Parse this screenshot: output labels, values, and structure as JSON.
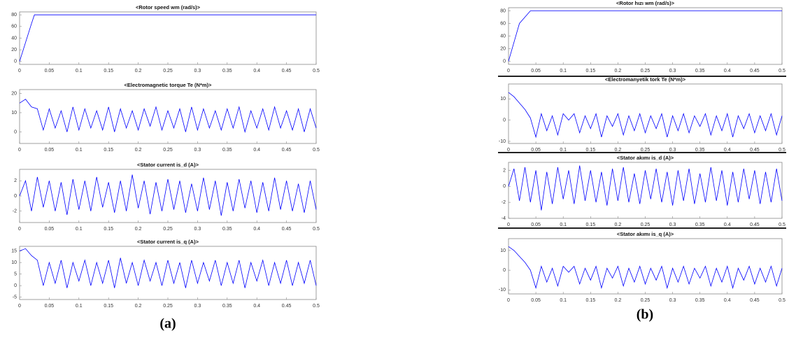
{
  "chart_data": [
    {
      "type": "line",
      "title": "<Rotor speed wm (rad/s)>",
      "x": [
        0,
        0.02,
        0.025,
        0.5
      ],
      "series": [
        {
          "color": "#0000ff",
          "values": [
            0,
            65,
            80,
            80
          ]
        }
      ],
      "xlim": [
        0,
        0.5
      ],
      "ylim": [
        -5,
        85
      ],
      "xticks": [
        0,
        0.05,
        0.1,
        0.15,
        0.2,
        0.25,
        0.3,
        0.35,
        0.4,
        0.45,
        0.5
      ],
      "yticks": [
        0,
        20,
        40,
        60,
        80
      ]
    },
    {
      "type": "line",
      "title": "<Electromagnetic torque Te (N*m)>",
      "x": [
        0,
        0.01,
        0.02,
        0.03,
        0.04,
        0.05,
        0.06,
        0.07,
        0.08,
        0.09,
        0.1,
        0.11,
        0.12,
        0.13,
        0.14,
        0.15,
        0.16,
        0.17,
        0.18,
        0.19,
        0.2,
        0.21,
        0.22,
        0.23,
        0.24,
        0.25,
        0.26,
        0.27,
        0.28,
        0.29,
        0.3,
        0.31,
        0.32,
        0.33,
        0.34,
        0.35,
        0.36,
        0.37,
        0.38,
        0.39,
        0.4,
        0.41,
        0.42,
        0.43,
        0.44,
        0.45,
        0.46,
        0.47,
        0.48,
        0.49,
        0.5
      ],
      "series": [
        {
          "color": "#0000ff",
          "values": [
            15,
            17,
            13,
            12,
            1,
            12,
            2,
            11,
            0,
            13,
            1,
            12,
            2,
            11,
            1,
            13,
            0,
            12,
            2,
            11,
            1,
            12,
            3,
            13,
            1,
            11,
            2,
            12,
            0,
            13,
            1,
            12,
            2,
            11,
            1,
            12,
            2,
            13,
            0,
            11,
            2,
            12,
            1,
            13,
            2,
            11,
            1,
            12,
            0,
            12,
            2
          ]
        }
      ],
      "xlim": [
        0,
        0.5
      ],
      "ylim": [
        -6,
        22
      ],
      "xticks": [
        0,
        0.05,
        0.1,
        0.15,
        0.2,
        0.25,
        0.3,
        0.35,
        0.4,
        0.45,
        0.5
      ],
      "yticks": [
        0,
        10,
        20
      ]
    },
    {
      "type": "line",
      "title": "<Stator current is_d (A)>",
      "x": [
        0,
        0.01,
        0.02,
        0.03,
        0.04,
        0.05,
        0.06,
        0.07,
        0.08,
        0.09,
        0.1,
        0.11,
        0.12,
        0.13,
        0.14,
        0.15,
        0.16,
        0.17,
        0.18,
        0.19,
        0.2,
        0.21,
        0.22,
        0.23,
        0.24,
        0.25,
        0.26,
        0.27,
        0.28,
        0.29,
        0.3,
        0.31,
        0.32,
        0.33,
        0.34,
        0.35,
        0.36,
        0.37,
        0.38,
        0.39,
        0.4,
        0.41,
        0.42,
        0.43,
        0.44,
        0.45,
        0.46,
        0.47,
        0.48,
        0.49,
        0.5
      ],
      "series": [
        {
          "color": "#0000ff",
          "values": [
            0,
            2,
            -2,
            2.5,
            -1.5,
            2,
            -2,
            1.8,
            -2.5,
            2.2,
            -1.8,
            2,
            -2,
            2.5,
            -1.5,
            1.8,
            -2.2,
            2,
            -2,
            2.8,
            -1.6,
            2,
            -2.4,
            1.8,
            -2,
            2.2,
            -1.8,
            2,
            -2.2,
            1.6,
            -2,
            2.4,
            -1.8,
            2,
            -2.6,
            1.8,
            -2,
            2.2,
            -1.6,
            2,
            -2.2,
            1.8,
            -2,
            2.4,
            -1.8,
            2,
            -2,
            1.6,
            -2.2,
            2,
            -1.8
          ]
        }
      ],
      "xlim": [
        0,
        0.5
      ],
      "ylim": [
        -3.5,
        3.5
      ],
      "xticks": [
        0,
        0.05,
        0.1,
        0.15,
        0.2,
        0.25,
        0.3,
        0.35,
        0.4,
        0.45,
        0.5
      ],
      "yticks": [
        -2,
        0,
        2
      ]
    },
    {
      "type": "line",
      "title": "<Stator current is_q (A)>",
      "x": [
        0,
        0.01,
        0.02,
        0.03,
        0.04,
        0.05,
        0.06,
        0.07,
        0.08,
        0.09,
        0.1,
        0.11,
        0.12,
        0.13,
        0.14,
        0.15,
        0.16,
        0.17,
        0.18,
        0.19,
        0.2,
        0.21,
        0.22,
        0.23,
        0.24,
        0.25,
        0.26,
        0.27,
        0.28,
        0.29,
        0.3,
        0.31,
        0.32,
        0.33,
        0.34,
        0.35,
        0.36,
        0.37,
        0.38,
        0.39,
        0.4,
        0.41,
        0.42,
        0.43,
        0.44,
        0.45,
        0.46,
        0.47,
        0.48,
        0.49,
        0.5
      ],
      "series": [
        {
          "color": "#0000ff",
          "values": [
            15,
            16,
            13,
            11,
            0,
            10,
            1,
            11,
            -1,
            10,
            2,
            11,
            0,
            10,
            1,
            11,
            -1,
            12,
            1,
            10,
            0,
            11,
            2,
            10,
            0,
            11,
            1,
            10,
            -1,
            11,
            1,
            10,
            2,
            11,
            0,
            10,
            1,
            11,
            -1,
            10,
            2,
            11,
            0,
            10,
            1,
            11,
            0,
            10,
            1,
            11,
            0
          ]
        }
      ],
      "xlim": [
        0,
        0.5
      ],
      "ylim": [
        -6,
        17
      ],
      "xticks": [
        0,
        0.05,
        0.1,
        0.15,
        0.2,
        0.25,
        0.3,
        0.35,
        0.4,
        0.45,
        0.5
      ],
      "yticks": [
        -5,
        0,
        5,
        10,
        15
      ]
    },
    {
      "type": "line",
      "title": "<Rotor hızı wm (rad/s)>",
      "x": [
        0,
        0.01,
        0.02,
        0.04,
        0.5
      ],
      "series": [
        {
          "color": "#0000ff",
          "values": [
            0,
            30,
            60,
            80,
            80
          ]
        }
      ],
      "xlim": [
        0,
        0.5
      ],
      "ylim": [
        -5,
        85
      ],
      "xticks": [
        0,
        0.05,
        0.1,
        0.15,
        0.2,
        0.25,
        0.3,
        0.35,
        0.4,
        0.45,
        0.5
      ],
      "yticks": [
        0,
        20,
        40,
        60,
        80
      ]
    },
    {
      "type": "line",
      "title": "<Electromanyetik tork Te (N*m)>",
      "x": [
        0,
        0.01,
        0.02,
        0.03,
        0.04,
        0.05,
        0.06,
        0.07,
        0.08,
        0.09,
        0.1,
        0.11,
        0.12,
        0.13,
        0.14,
        0.15,
        0.16,
        0.17,
        0.18,
        0.19,
        0.2,
        0.21,
        0.22,
        0.23,
        0.24,
        0.25,
        0.26,
        0.27,
        0.28,
        0.29,
        0.3,
        0.31,
        0.32,
        0.33,
        0.34,
        0.35,
        0.36,
        0.37,
        0.38,
        0.39,
        0.4,
        0.41,
        0.42,
        0.43,
        0.44,
        0.45,
        0.46,
        0.47,
        0.48,
        0.49,
        0.5
      ],
      "series": [
        {
          "color": "#0000ff",
          "values": [
            13,
            11,
            8,
            5,
            1,
            -8,
            3,
            -5,
            2,
            -7,
            3,
            0,
            3,
            -6,
            2,
            -4,
            3,
            -8,
            2,
            -3,
            3,
            -7,
            2,
            -5,
            3,
            -6,
            2,
            -4,
            3,
            -8,
            2,
            -5,
            3,
            -6,
            2,
            -3,
            3,
            -7,
            2,
            -5,
            3,
            -8,
            2,
            -4,
            3,
            -6,
            2,
            -5,
            3,
            -7,
            2
          ]
        }
      ],
      "xlim": [
        0,
        0.5
      ],
      "ylim": [
        -11,
        17
      ],
      "xticks": [
        0,
        0.05,
        0.1,
        0.15,
        0.2,
        0.25,
        0.3,
        0.35,
        0.4,
        0.45,
        0.5
      ],
      "yticks": [
        -10,
        0,
        10
      ]
    },
    {
      "type": "line",
      "title": "<Stator akımı is_d (A)>",
      "x": [
        0,
        0.01,
        0.02,
        0.03,
        0.04,
        0.05,
        0.06,
        0.07,
        0.08,
        0.09,
        0.1,
        0.11,
        0.12,
        0.13,
        0.14,
        0.15,
        0.16,
        0.17,
        0.18,
        0.19,
        0.2,
        0.21,
        0.22,
        0.23,
        0.24,
        0.25,
        0.26,
        0.27,
        0.28,
        0.29,
        0.3,
        0.31,
        0.32,
        0.33,
        0.34,
        0.35,
        0.36,
        0.37,
        0.38,
        0.39,
        0.4,
        0.41,
        0.42,
        0.43,
        0.44,
        0.45,
        0.46,
        0.47,
        0.48,
        0.49,
        0.5
      ],
      "series": [
        {
          "color": "#0000ff",
          "values": [
            0,
            2.2,
            -1.8,
            2.4,
            -2,
            2,
            -3,
            1.8,
            -2.2,
            2.4,
            -1.6,
            2,
            -2.2,
            2.6,
            -1.8,
            2,
            -2,
            1.8,
            -2.4,
            2.2,
            -1.8,
            2.4,
            -2,
            1.6,
            -2.2,
            2,
            -1.6,
            2.2,
            -2,
            1.8,
            -2.4,
            2,
            -1.8,
            2.2,
            -2.2,
            1.6,
            -2,
            2.4,
            -1.8,
            2,
            -2.4,
            1.8,
            -2,
            2.2,
            -1.6,
            2,
            -2.2,
            1.8,
            -2,
            2.2,
            -1.8
          ]
        }
      ],
      "xlim": [
        0,
        0.5
      ],
      "ylim": [
        -4,
        3
      ],
      "xticks": [
        0,
        0.05,
        0.1,
        0.15,
        0.2,
        0.25,
        0.3,
        0.35,
        0.4,
        0.45,
        0.5
      ],
      "yticks": [
        -4,
        -2,
        0,
        2
      ]
    },
    {
      "type": "line",
      "title": "<Stator akımı is_q (A)>",
      "x": [
        0,
        0.01,
        0.02,
        0.03,
        0.04,
        0.05,
        0.06,
        0.07,
        0.08,
        0.09,
        0.1,
        0.11,
        0.12,
        0.13,
        0.14,
        0.15,
        0.16,
        0.17,
        0.18,
        0.19,
        0.2,
        0.21,
        0.22,
        0.23,
        0.24,
        0.25,
        0.26,
        0.27,
        0.28,
        0.29,
        0.3,
        0.31,
        0.32,
        0.33,
        0.34,
        0.35,
        0.36,
        0.37,
        0.38,
        0.39,
        0.4,
        0.41,
        0.42,
        0.43,
        0.44,
        0.45,
        0.46,
        0.47,
        0.48,
        0.49,
        0.5
      ],
      "series": [
        {
          "color": "#0000ff",
          "values": [
            12,
            10,
            7,
            4,
            0,
            -9,
            2,
            -6,
            1,
            -8,
            2,
            -1,
            2,
            -7,
            1,
            -5,
            2,
            -9,
            1,
            -4,
            2,
            -8,
            1,
            -6,
            2,
            -7,
            1,
            -5,
            2,
            -9,
            1,
            -6,
            2,
            -7,
            1,
            -4,
            2,
            -8,
            1,
            -6,
            2,
            -9,
            1,
            -5,
            2,
            -7,
            1,
            -6,
            2,
            -8,
            1
          ]
        }
      ],
      "xlim": [
        0,
        0.5
      ],
      "ylim": [
        -12,
        16
      ],
      "xticks": [
        0,
        0.05,
        0.1,
        0.15,
        0.2,
        0.25,
        0.3,
        0.35,
        0.4,
        0.45,
        0.5
      ],
      "yticks": [
        -10,
        0,
        10
      ]
    }
  ],
  "captions": [
    "(a)",
    "(b)"
  ]
}
